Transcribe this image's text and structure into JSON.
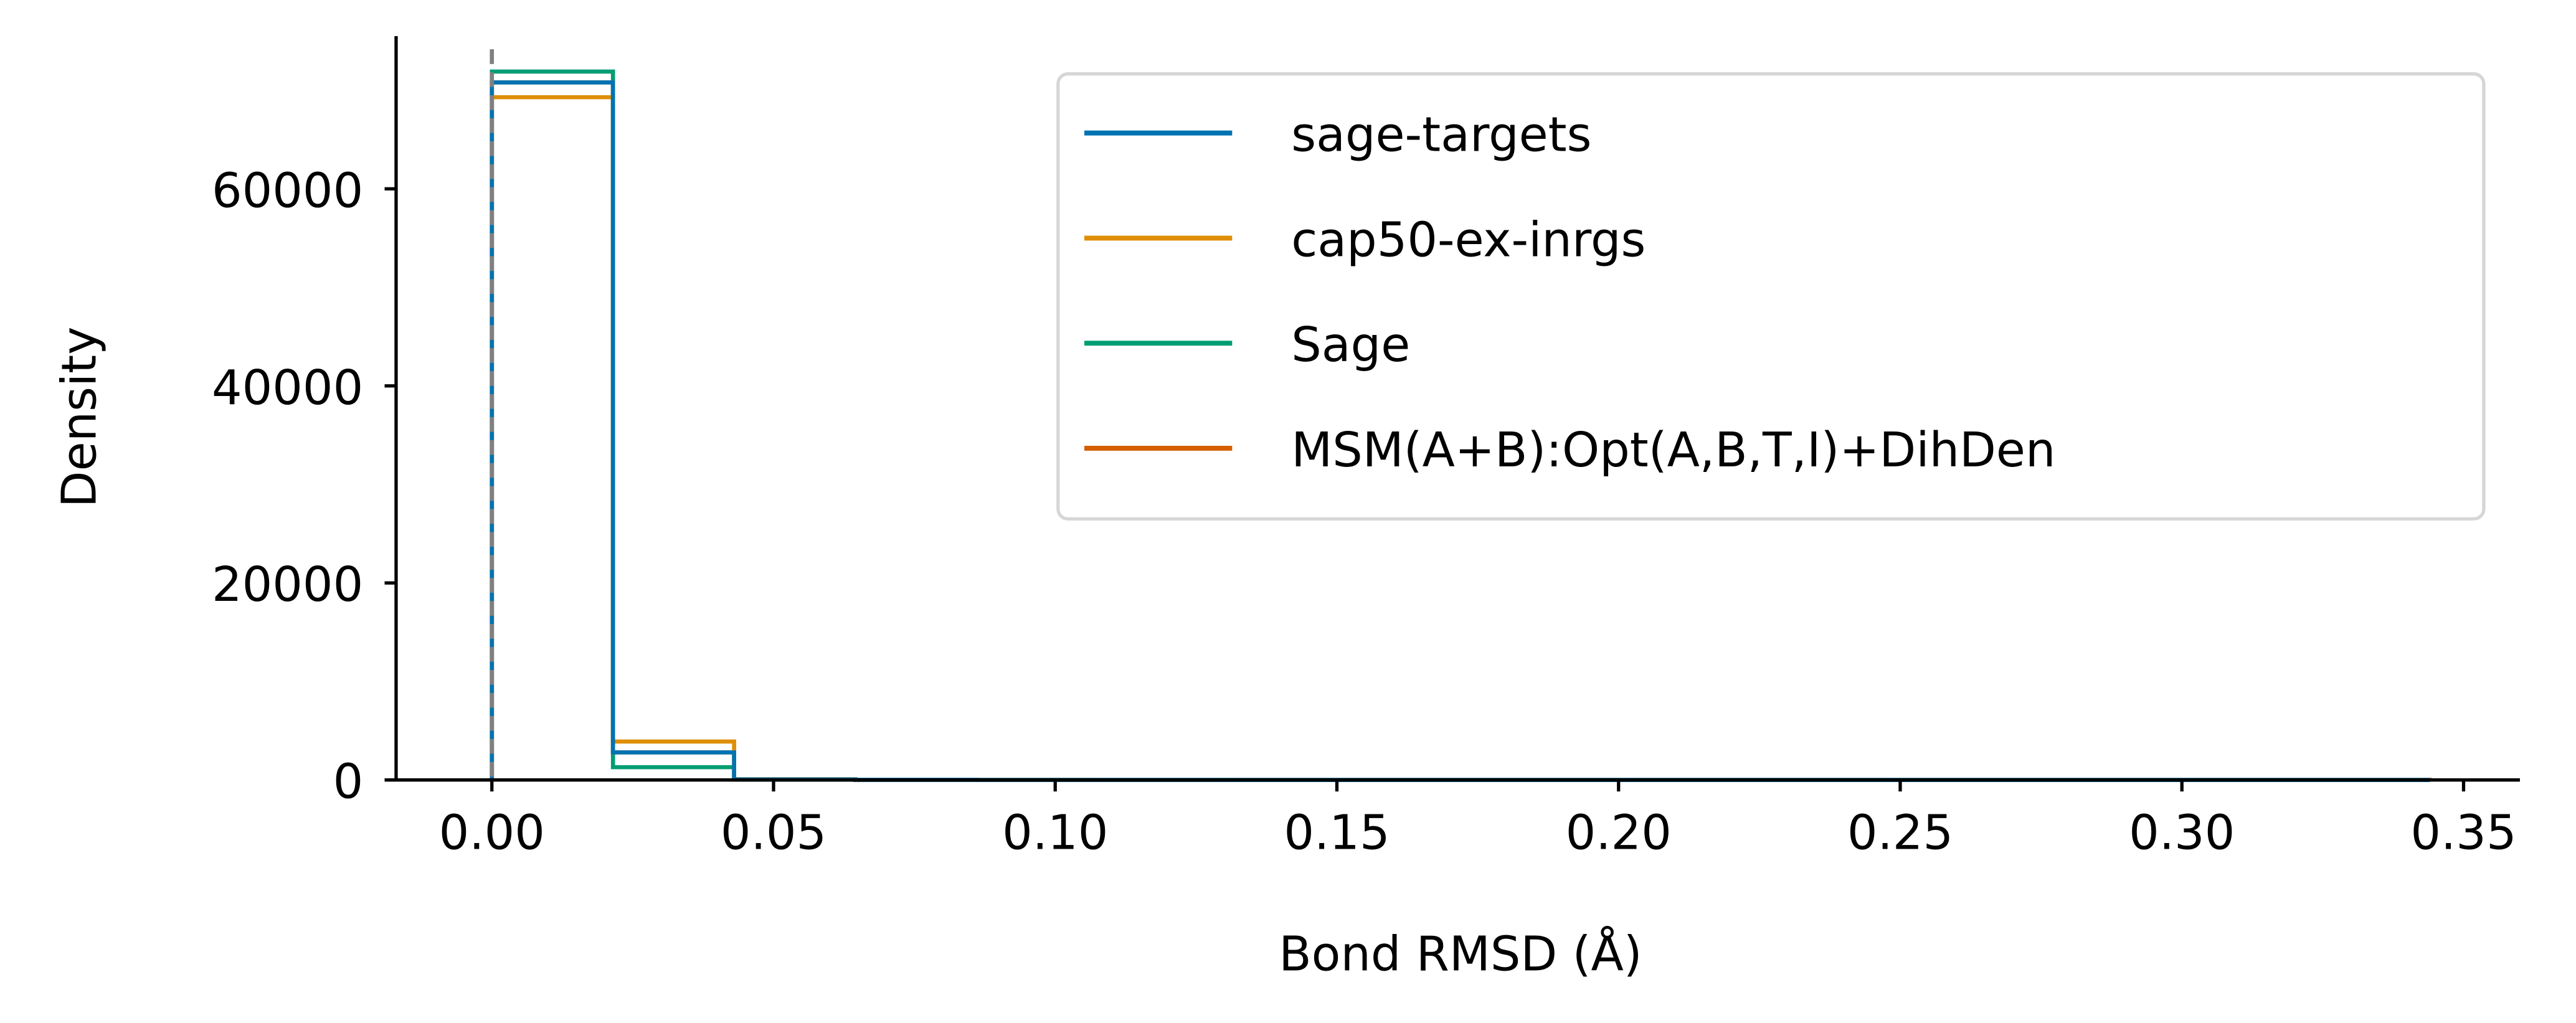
{
  "chart_data": {
    "type": "histogram-step",
    "xlabel": "Bond RMSD (Å)",
    "ylabel": "Density",
    "xlim": [
      -0.017,
      0.36
    ],
    "ylim": [
      0,
      75500
    ],
    "xticks": [
      0.0,
      0.05,
      0.1,
      0.15,
      0.2,
      0.25,
      0.3,
      0.35
    ],
    "xtick_labels": [
      "0.00",
      "0.05",
      "0.10",
      "0.15",
      "0.20",
      "0.25",
      "0.30",
      "0.35"
    ],
    "yticks": [
      0,
      20000,
      40000,
      60000
    ],
    "ytick_labels": [
      "0",
      "20000",
      "40000",
      "60000"
    ],
    "reference_line": {
      "x": 0.0,
      "color": "#808080",
      "style": "dashed"
    },
    "legend_position": "upper right",
    "grid": false,
    "bin_edges": [
      0.0,
      0.0215,
      0.043,
      0.0645,
      0.086,
      0.1075,
      0.129,
      0.1505,
      0.172,
      0.1935,
      0.215,
      0.2365,
      0.258,
      0.2795,
      0.301,
      0.3225,
      0.344
    ],
    "series": [
      {
        "name": "sage-targets",
        "color": "#0173b2",
        "values": [
          70800,
          2800,
          60,
          15,
          5,
          3,
          2,
          2,
          1,
          1,
          1,
          1,
          1,
          1,
          1,
          1
        ]
      },
      {
        "name": "cap50-ex-inrgs",
        "color": "#de8f05",
        "values": [
          69300,
          3900,
          80,
          20,
          6,
          3,
          2,
          2,
          1,
          1,
          1,
          1,
          1,
          1,
          1,
          1
        ]
      },
      {
        "name": "Sage",
        "color": "#029e73",
        "values": [
          71900,
          1300,
          40,
          10,
          4,
          2,
          2,
          1,
          1,
          1,
          1,
          1,
          1,
          1,
          1,
          1
        ]
      },
      {
        "name": "MSM(A+B):Opt(A,B,T,I)+DihDen",
        "color": "#d55e00",
        "values": [
          70800,
          2800,
          60,
          15,
          5,
          3,
          2,
          2,
          1,
          1,
          1,
          1,
          1,
          1,
          1,
          1
        ]
      }
    ]
  }
}
